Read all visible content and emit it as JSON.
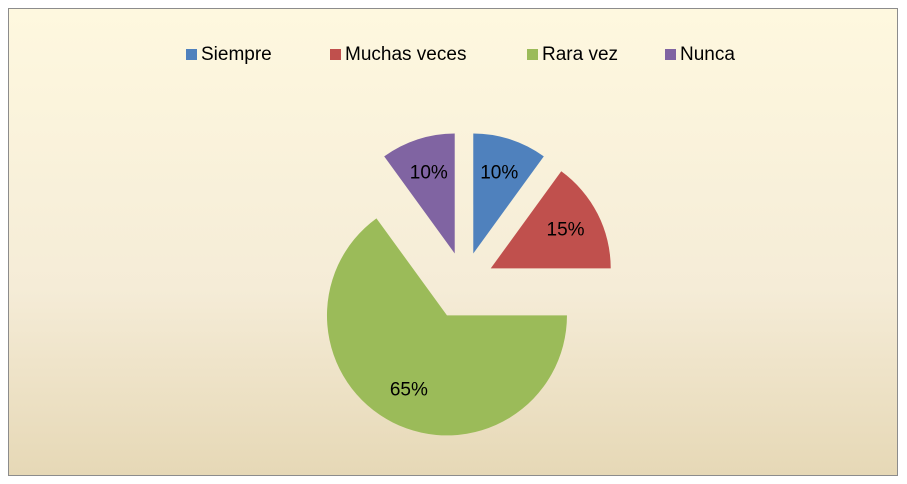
{
  "chart_data": {
    "type": "pie",
    "categories": [
      "Siempre",
      "Muchas veces",
      "Rara vez",
      "Nunca"
    ],
    "values": [
      10,
      15,
      65,
      10
    ],
    "value_labels": [
      "10%",
      "15%",
      "65%",
      "10%"
    ],
    "colors": [
      "#4f81bd",
      "#c0504d",
      "#9bbb59",
      "#8064a2"
    ],
    "legend": "top"
  }
}
